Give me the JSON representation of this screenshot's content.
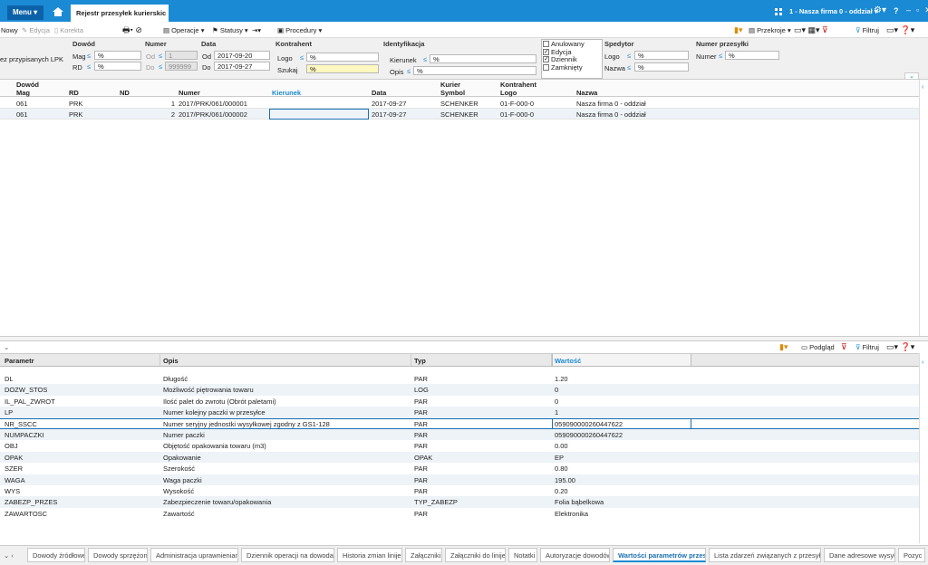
{
  "top_bar": {
    "menu": "Menu",
    "tab": "Rejestr przesyłek kurierskic",
    "company": "1 - Nasza firma 0 - oddział"
  },
  "toolbar": {
    "new": "Nowy",
    "edit": "Edycja",
    "correct": "Korekta",
    "operations": "Operacje",
    "statuses": "Statusy",
    "procedures": "Procedury",
    "sections": "Przekroje",
    "filter": "Filtruj"
  },
  "filters": {
    "operator": "≤",
    "no_lpk": "ez przypisanych LPK",
    "document": {
      "title": "Dowód",
      "mag_label": "Mag",
      "mag_value": "%",
      "rd_label": "RD",
      "rd_value": "%"
    },
    "number": {
      "title": "Numer",
      "from_label": "Od",
      "from_value": "1",
      "to_label": "Do",
      "to_value": "999999"
    },
    "date": {
      "title": "Data",
      "from_label": "Od",
      "from_value": "2017-09-20",
      "to_label": "Do",
      "to_value": "2017-09-27"
    },
    "contractor": {
      "title": "Kontrahent",
      "logo_label": "Logo",
      "logo_value": "%",
      "search_label": "Szukaj",
      "search_value": "%"
    },
    "identification": {
      "title": "Identyfikacja",
      "direction_label": "Kierunek",
      "direction_value": "%",
      "description_label": "Opis",
      "description_value": "%"
    },
    "statuses": [
      {
        "label": "Anulowany",
        "checked": false
      },
      {
        "label": "Edycja",
        "checked": true
      },
      {
        "label": "Dziennik",
        "checked": true
      },
      {
        "label": "Zamknięty",
        "checked": false
      }
    ],
    "forwarder": {
      "title": "Spedytor",
      "logo_label": "Logo",
      "logo_value": "%",
      "name_label": "Nazwa",
      "name_value": "%"
    },
    "shipment_number": {
      "title": "Numer przesyłki",
      "number_label": "Numer",
      "number_value": "%"
    }
  },
  "grid": {
    "group_headers": [
      "Dowód",
      "Kurier",
      "Kontrahent"
    ],
    "columns": [
      "Mag",
      "RD",
      "ND",
      "Numer",
      "Kierunek",
      "Data",
      "Symbol",
      "Logo",
      "Nazwa"
    ],
    "rows": [
      [
        "061",
        "PRK",
        "1",
        "2017/PRK/061/000001",
        null,
        "2017-09-27",
        "SCHENKER",
        "01-F-000-0",
        "Nasza firma 0 - oddział"
      ],
      [
        "061",
        "PRK",
        "2",
        "2017/PRK/061/000002",
        null,
        "2017-09-27",
        "SCHENKER",
        "01-F-000-0",
        "Nasza firma 0 - oddział"
      ]
    ]
  },
  "details": {
    "toolbar": {
      "preview": "Podgląd",
      "filter": "Filtruj"
    },
    "columns": [
      "Parametr",
      "Opis",
      "Typ",
      "Wartość"
    ],
    "rows": [
      [
        "DL",
        "Długość",
        "PAR",
        "1.20"
      ],
      [
        "DOZW_STOS",
        "Możliwość piętrowania towaru",
        "LOG",
        "0"
      ],
      [
        "IL_PAL_ZWROT",
        "Ilość palet do zwrotu (Obrót paletami)",
        "PAR",
        "0"
      ],
      [
        "LP",
        "Numer kolejny paczki w przesyłce",
        "PAR",
        "1"
      ],
      [
        "NR_SSCC",
        "Numer seryjny jednostki wysyłkowej zgodny z GS1-128",
        "PAR",
        "05909000026044762​2"
      ],
      [
        "NUMPACZKI",
        "Numer paczki",
        "PAR",
        "059090000260447622"
      ],
      [
        "OBJ",
        "Objętość opakowania towaru (m3)",
        "PAR",
        "0.00"
      ],
      [
        "OPAK",
        "Opakowanie",
        "OPAK",
        "EP"
      ],
      [
        "SZER",
        "Szerokość",
        "PAR",
        "0.80"
      ],
      [
        "WAGA",
        "Waga paczki",
        "PAR",
        "195.00"
      ],
      [
        "WYS",
        "Wysokość",
        "PAR",
        "0.20"
      ],
      [
        "ZABEZP_PRZES",
        "Zabezpieczenie towaru/opakowania",
        "TYP_ZABEZP",
        "Folia bąbelkowa"
      ],
      [
        "ZAWARTOSC",
        "Zawartość",
        "PAR",
        "Elektronika"
      ]
    ]
  },
  "tabs": [
    {
      "label": "Dowody źródłowe",
      "active": false
    },
    {
      "label": "Dowody sprzężone",
      "active": false
    },
    {
      "label": "Administracja uprawnieniami",
      "active": false
    },
    {
      "label": "Dziennik operacji na dowodach",
      "active": false
    },
    {
      "label": "Historia zmian linijek",
      "active": false
    },
    {
      "label": "Załączniki",
      "active": false
    },
    {
      "label": "Załączniki do linijek",
      "active": false
    },
    {
      "label": "Notatki",
      "active": false
    },
    {
      "label": "Autoryzacje dowodów",
      "active": false
    },
    {
      "label": "Wartości parametrów przesyłki",
      "active": true
    },
    {
      "label": "Lista zdarzeń związanych z przesyłką",
      "active": false
    },
    {
      "label": "Dane adresowe wysyłki",
      "active": false
    },
    {
      "label": "Pozyc",
      "active": false
    }
  ]
}
